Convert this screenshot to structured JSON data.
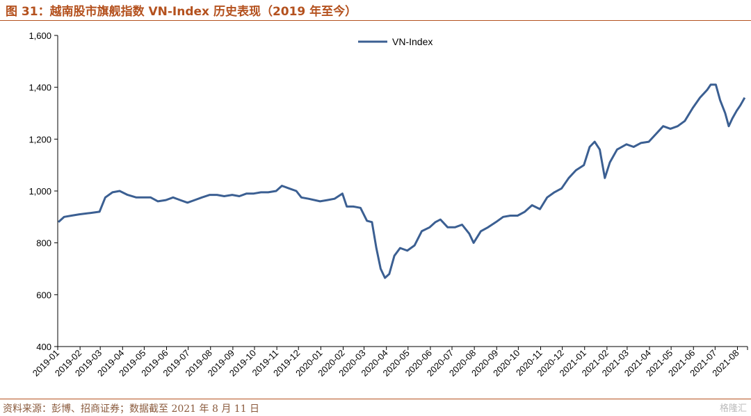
{
  "header": {
    "title": "图 31：越南股市旗舰指数 VN-Index 历史表现（2019 年至今）"
  },
  "footer": {
    "source": "资料来源：彭博、招商证券；数据截至 2021 年 8 月 11 日",
    "watermark": "格隆汇"
  },
  "colors": {
    "series": "#3b5f92",
    "accent": "#b4511e"
  },
  "chart_data": {
    "type": "line",
    "ylim": [
      400,
      1600
    ],
    "yticks": [
      400,
      600,
      800,
      1000,
      1200,
      1400,
      1600
    ],
    "ytick_labels": [
      "400",
      "600",
      "800",
      "1,000",
      "1,200",
      "1,400",
      "1,600"
    ],
    "xtick_labels": [
      "2019-01",
      "2019-02",
      "2019-03",
      "2019-04",
      "2019-05",
      "2019-06",
      "2019-07",
      "2019-08",
      "2019-09",
      "2019-10",
      "2019-11",
      "2019-12",
      "2020-01",
      "2020-02",
      "2020-03",
      "2020-04",
      "2020-05",
      "2020-06",
      "2020-07",
      "2020-08",
      "2020-09",
      "2020-10",
      "2020-11",
      "2020-12",
      "2021-01",
      "2021-02",
      "2021-03",
      "2021-04",
      "2021-05",
      "2021-06",
      "2021-07",
      "2021-08"
    ],
    "legend": "top-center",
    "grid": false,
    "series": [
      {
        "name": "VN-Index",
        "points": [
          [
            "2019-01-02",
            880
          ],
          [
            "2019-01-10",
            900
          ],
          [
            "2019-01-20",
            905
          ],
          [
            "2019-01-31",
            910
          ],
          [
            "2019-02-15",
            915
          ],
          [
            "2019-02-28",
            920
          ],
          [
            "2019-03-08",
            975
          ],
          [
            "2019-03-18",
            995
          ],
          [
            "2019-03-28",
            1000
          ],
          [
            "2019-04-08",
            985
          ],
          [
            "2019-04-20",
            975
          ],
          [
            "2019-04-30",
            975
          ],
          [
            "2019-05-10",
            975
          ],
          [
            "2019-05-20",
            960
          ],
          [
            "2019-05-31",
            965
          ],
          [
            "2019-06-10",
            975
          ],
          [
            "2019-06-20",
            965
          ],
          [
            "2019-06-30",
            955
          ],
          [
            "2019-07-10",
            965
          ],
          [
            "2019-07-20",
            975
          ],
          [
            "2019-07-31",
            985
          ],
          [
            "2019-08-10",
            985
          ],
          [
            "2019-08-20",
            980
          ],
          [
            "2019-08-31",
            985
          ],
          [
            "2019-09-10",
            980
          ],
          [
            "2019-09-20",
            990
          ],
          [
            "2019-09-30",
            990
          ],
          [
            "2019-10-10",
            995
          ],
          [
            "2019-10-20",
            995
          ],
          [
            "2019-10-31",
            1000
          ],
          [
            "2019-11-08",
            1020
          ],
          [
            "2019-11-18",
            1010
          ],
          [
            "2019-11-28",
            1000
          ],
          [
            "2019-12-05",
            975
          ],
          [
            "2019-12-15",
            970
          ],
          [
            "2019-12-31",
            960
          ],
          [
            "2020-01-10",
            965
          ],
          [
            "2020-01-20",
            970
          ],
          [
            "2020-01-31",
            990
          ],
          [
            "2020-02-06",
            940
          ],
          [
            "2020-02-15",
            940
          ],
          [
            "2020-02-25",
            935
          ],
          [
            "2020-03-05",
            885
          ],
          [
            "2020-03-12",
            880
          ],
          [
            "2020-03-18",
            780
          ],
          [
            "2020-03-24",
            700
          ],
          [
            "2020-03-30",
            665
          ],
          [
            "2020-04-05",
            680
          ],
          [
            "2020-04-12",
            750
          ],
          [
            "2020-04-20",
            780
          ],
          [
            "2020-04-30",
            770
          ],
          [
            "2020-05-10",
            790
          ],
          [
            "2020-05-20",
            845
          ],
          [
            "2020-05-31",
            860
          ],
          [
            "2020-06-08",
            880
          ],
          [
            "2020-06-15",
            890
          ],
          [
            "2020-06-25",
            860
          ],
          [
            "2020-07-05",
            860
          ],
          [
            "2020-07-15",
            870
          ],
          [
            "2020-07-25",
            835
          ],
          [
            "2020-07-31",
            800
          ],
          [
            "2020-08-10",
            845
          ],
          [
            "2020-08-20",
            860
          ],
          [
            "2020-08-31",
            880
          ],
          [
            "2020-09-10",
            900
          ],
          [
            "2020-09-20",
            905
          ],
          [
            "2020-09-30",
            905
          ],
          [
            "2020-10-10",
            920
          ],
          [
            "2020-10-20",
            945
          ],
          [
            "2020-10-31",
            930
          ],
          [
            "2020-11-10",
            975
          ],
          [
            "2020-11-20",
            995
          ],
          [
            "2020-11-30",
            1010
          ],
          [
            "2020-12-10",
            1050
          ],
          [
            "2020-12-20",
            1080
          ],
          [
            "2020-12-31",
            1100
          ],
          [
            "2021-01-08",
            1170
          ],
          [
            "2021-01-15",
            1190
          ],
          [
            "2021-01-22",
            1160
          ],
          [
            "2021-01-29",
            1050
          ],
          [
            "2021-02-05",
            1110
          ],
          [
            "2021-02-15",
            1160
          ],
          [
            "2021-02-28",
            1180
          ],
          [
            "2021-03-10",
            1170
          ],
          [
            "2021-03-20",
            1185
          ],
          [
            "2021-03-31",
            1190
          ],
          [
            "2021-04-10",
            1220
          ],
          [
            "2021-04-20",
            1250
          ],
          [
            "2021-04-30",
            1240
          ],
          [
            "2021-05-10",
            1250
          ],
          [
            "2021-05-20",
            1270
          ],
          [
            "2021-05-31",
            1320
          ],
          [
            "2021-06-10",
            1360
          ],
          [
            "2021-06-20",
            1390
          ],
          [
            "2021-06-25",
            1410
          ],
          [
            "2021-07-02",
            1410
          ],
          [
            "2021-07-08",
            1350
          ],
          [
            "2021-07-15",
            1300
          ],
          [
            "2021-07-20",
            1250
          ],
          [
            "2021-07-25",
            1280
          ],
          [
            "2021-07-31",
            1310
          ],
          [
            "2021-08-05",
            1330
          ],
          [
            "2021-08-11",
            1360
          ]
        ]
      }
    ]
  }
}
